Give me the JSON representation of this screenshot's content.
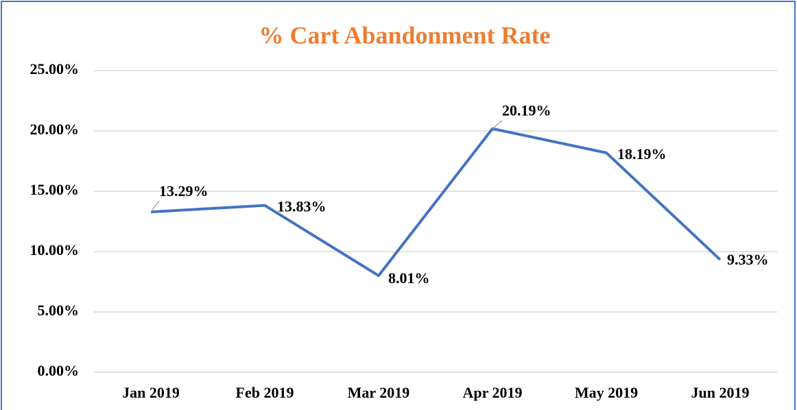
{
  "chart_data": {
    "type": "line",
    "title": "% Cart Abandonment Rate",
    "categories": [
      "Jan 2019",
      "Feb 2019",
      "Mar 2019",
      "Apr 2019",
      "May 2019",
      "Jun 2019"
    ],
    "series": [
      {
        "color": "#4472c4",
        "values": [
          13.29,
          13.83,
          8.01,
          20.19,
          18.19,
          9.33
        ],
        "value_labels": [
          "13.29%",
          "13.83%",
          "8.01%",
          "20.19%",
          "18.19%",
          "9.33%"
        ]
      }
    ],
    "ylim": [
      0,
      25
    ],
    "yticks": [
      {
        "value": 0,
        "label": "0.00%"
      },
      {
        "value": 5,
        "label": "5.00%"
      },
      {
        "value": 10,
        "label": "10.00%"
      },
      {
        "value": 15,
        "label": "15.00%"
      },
      {
        "value": 20,
        "label": "20.00%"
      },
      {
        "value": 25,
        "label": "25.00%"
      }
    ],
    "grid": true
  }
}
